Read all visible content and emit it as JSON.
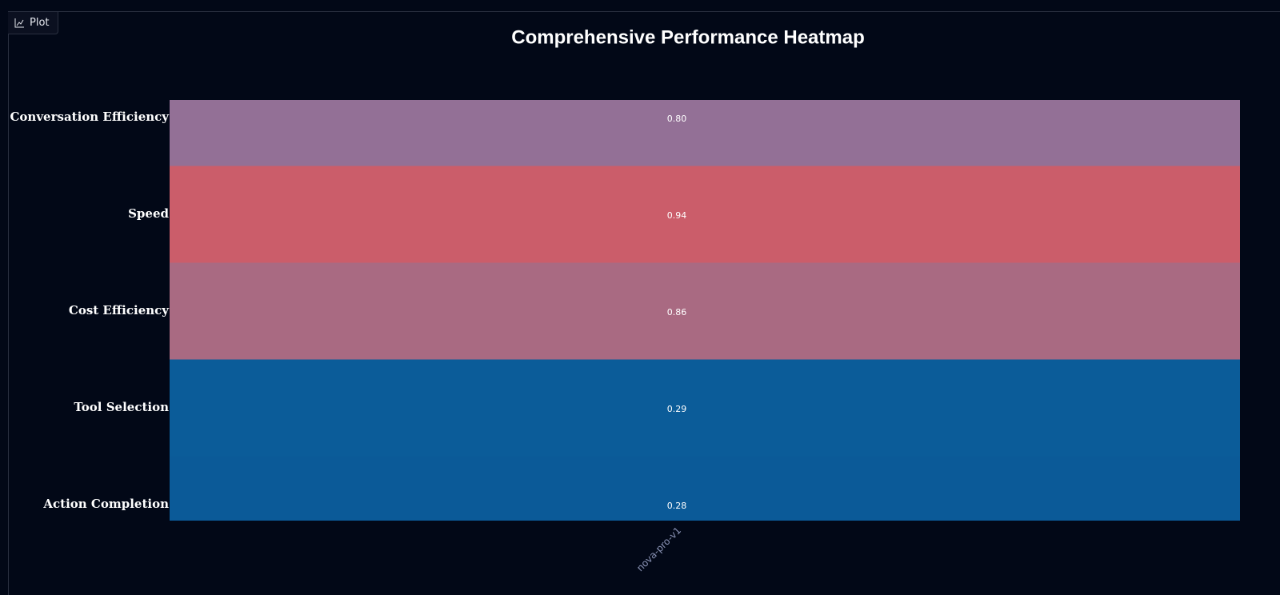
{
  "panel_label": "Plot",
  "chart_data": {
    "type": "heatmap",
    "title": "Comprehensive Performance Heatmap",
    "x_categories": [
      "nova-pro-v1"
    ],
    "y_categories": [
      "Conversation Efficiency",
      "Speed",
      "Cost Efficiency",
      "Tool Selection",
      "Action Completion"
    ],
    "values": [
      [
        0.8
      ],
      [
        0.94
      ],
      [
        0.86
      ],
      [
        0.29
      ],
      [
        0.28
      ]
    ],
    "value_labels": [
      [
        "0.80"
      ],
      [
        "0.94"
      ],
      [
        "0.86"
      ],
      [
        "0.29"
      ],
      [
        "0.28"
      ]
    ],
    "colors": [
      [
        "#937096"
      ],
      [
        "#cb5d6a"
      ],
      [
        "#a96a82"
      ],
      [
        "#0b5c99"
      ],
      [
        "#0b5a98"
      ]
    ]
  }
}
